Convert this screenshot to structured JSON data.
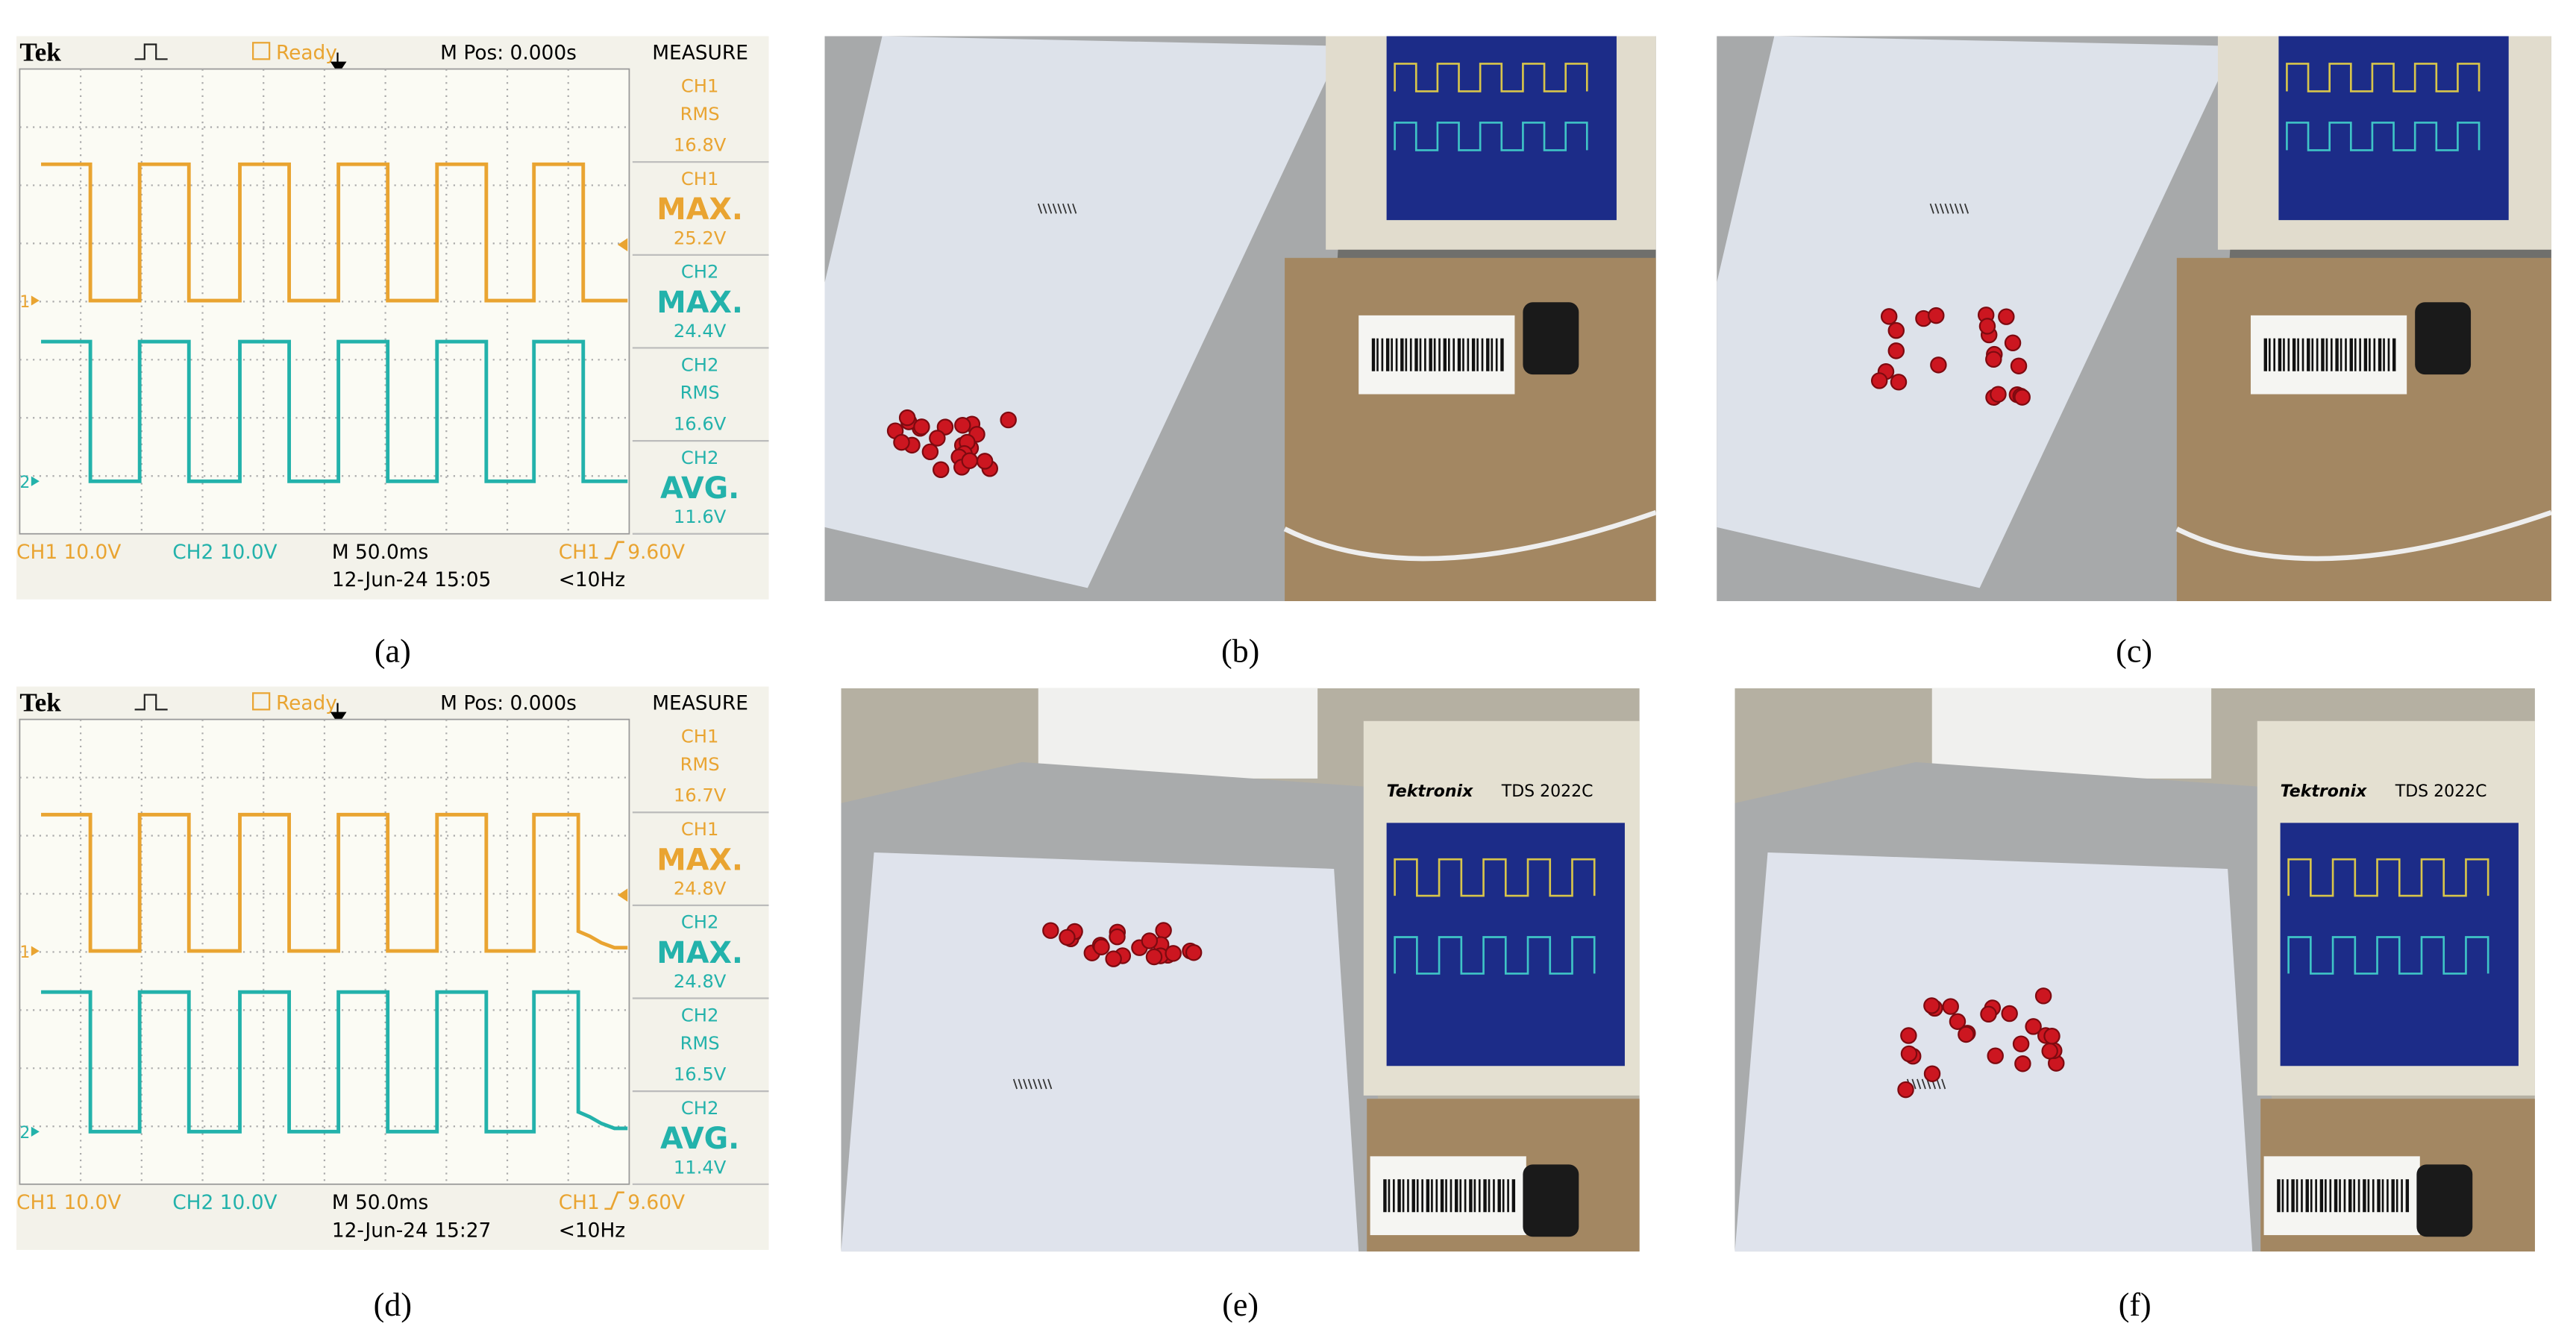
{
  "panels": [
    {
      "label": "(a)",
      "screen": {
        "brand": "Tek",
        "status": "Ready",
        "position": "M Pos: 0.000s",
        "menu": "MEASURE",
        "measures": [
          {
            "channel": "CH1",
            "kind": "RMS",
            "value": "16.8V"
          },
          {
            "channel": "CH1",
            "kind": "MAX.",
            "value": "25.2V"
          },
          {
            "channel": "CH2",
            "kind": "MAX.",
            "value": "24.4V"
          },
          {
            "channel": "CH2",
            "kind": "RMS",
            "value": "16.6V"
          },
          {
            "channel": "CH2",
            "kind": "AVG.",
            "value": "11.6V"
          }
        ],
        "ch1_marker": "1",
        "ch2_marker": "2",
        "ch1_scale": "CH1 10.0V",
        "ch2_scale": "CH2 10.0V",
        "timebase": "M 50.0ms",
        "datetime": "12-Jun-24 15:05",
        "trigger_source": "CH1",
        "trigger_level": "9.60V",
        "frequency": "<10Hz"
      }
    },
    {
      "label": "(b)"
    },
    {
      "label": "(c)"
    },
    {
      "label": "(d)",
      "screen": {
        "brand": "Tek",
        "status": "Ready",
        "position": "M Pos: 0.000s",
        "menu": "MEASURE",
        "measures": [
          {
            "channel": "CH1",
            "kind": "RMS",
            "value": "16.7V"
          },
          {
            "channel": "CH1",
            "kind": "MAX.",
            "value": "24.8V"
          },
          {
            "channel": "CH2",
            "kind": "MAX.",
            "value": "24.8V"
          },
          {
            "channel": "CH2",
            "kind": "RMS",
            "value": "16.5V"
          },
          {
            "channel": "CH2",
            "kind": "AVG.",
            "value": "11.4V"
          }
        ],
        "ch1_marker": "1",
        "ch2_marker": "2",
        "ch1_scale": "CH1 10.0V",
        "ch2_scale": "CH2 10.0V",
        "timebase": "M 50.0ms",
        "datetime": "12-Jun-24 15:27",
        "trigger_source": "CH1",
        "trigger_level": "9.60V",
        "frequency": "<10Hz"
      }
    },
    {
      "label": "(e)",
      "scope_brand": "Tektronix",
      "scope_model": "TDS 2022C"
    },
    {
      "label": "(f)",
      "scope_brand": "Tektronix",
      "scope_model": "TDS 2022C"
    }
  ]
}
